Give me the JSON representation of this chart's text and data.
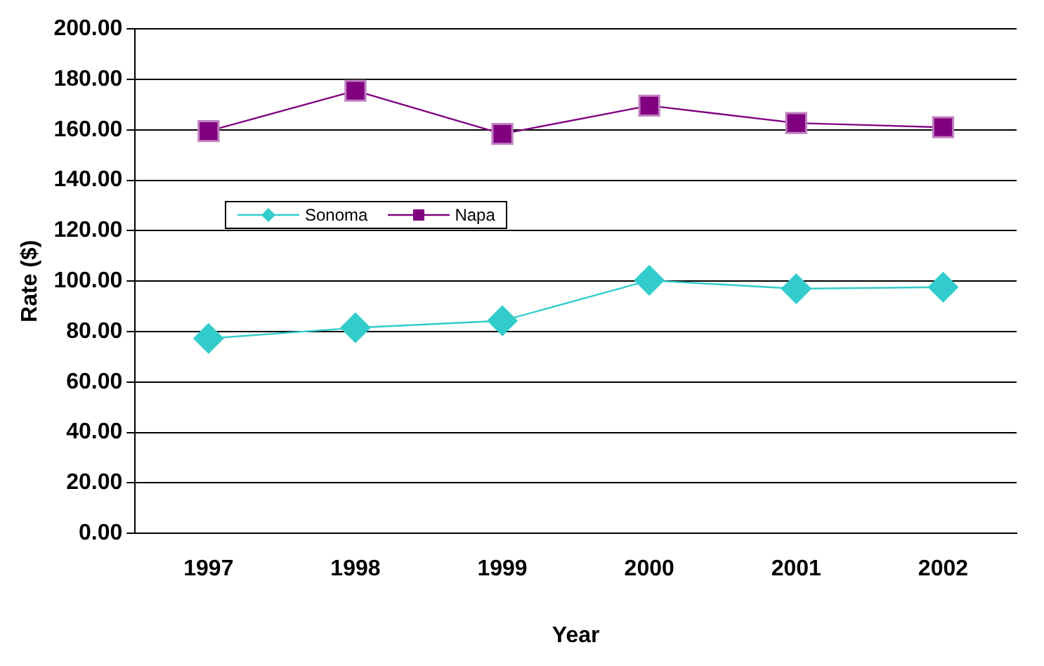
{
  "chart_data": {
    "type": "line",
    "xlabel": "Year",
    "ylabel": "Rate ($)",
    "categories": [
      "1997",
      "1998",
      "1999",
      "2000",
      "2001",
      "2002"
    ],
    "series": [
      {
        "name": "Sonoma",
        "color": "#33cccc",
        "marker": "diamond",
        "values": [
          77.3,
          81.5,
          84.3,
          100.3,
          97,
          97.6
        ]
      },
      {
        "name": "Napa",
        "color": "#800080",
        "marker": "square",
        "values": [
          159.5,
          175.5,
          158.4,
          169.6,
          162.7,
          161
        ]
      }
    ],
    "ylim": [
      0,
      200
    ],
    "yticks": [
      {
        "value": 0,
        "label": "0.00"
      },
      {
        "value": 20,
        "label": "20.00"
      },
      {
        "value": 40,
        "label": "40.00"
      },
      {
        "value": 60,
        "label": "60.00"
      },
      {
        "value": 80,
        "label": "80.00"
      },
      {
        "value": 100,
        "label": "100.00"
      },
      {
        "value": 120,
        "label": "120.00"
      },
      {
        "value": 140,
        "label": "140.00"
      },
      {
        "value": 160,
        "label": "160.00"
      },
      {
        "value": 180,
        "label": "180.00"
      },
      {
        "value": 200,
        "label": "200.00"
      }
    ],
    "grid": "y",
    "legend": "left"
  }
}
